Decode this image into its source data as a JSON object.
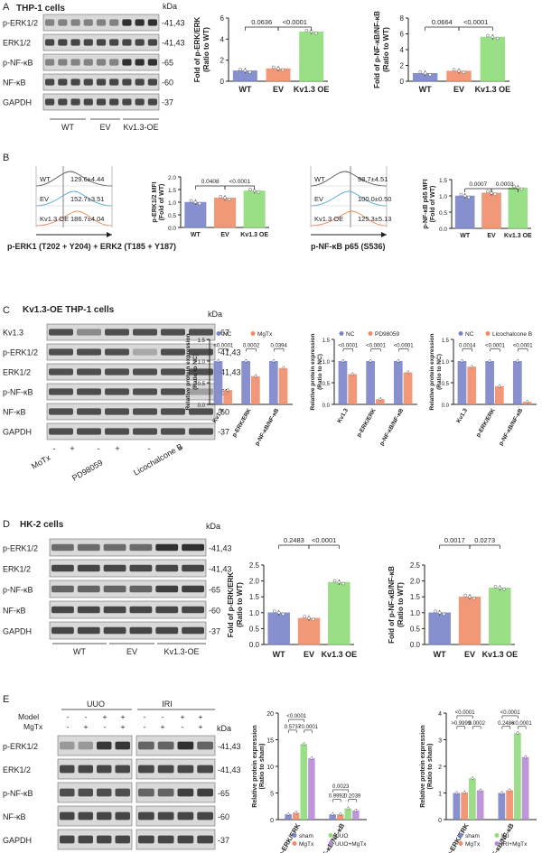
{
  "panelA": {
    "letter": "A",
    "title": "THP-1 cells",
    "kda_header": "kDa",
    "blot_rows": [
      {
        "label": "p-ERK1/2",
        "kda": "-41,43"
      },
      {
        "label": "ERK1/2",
        "kda": "-41,43"
      },
      {
        "label": "p-NF-κB",
        "kda": "-65"
      },
      {
        "label": "NF-κB",
        "kda": "-60"
      },
      {
        "label": "GAPDH",
        "kda": "-37"
      }
    ],
    "groups": [
      "WT",
      "EV",
      "Kv1.3-OE"
    ]
  },
  "panelB": {
    "letter": "B",
    "flow1": {
      "rows": [
        {
          "name": "WT",
          "value": "129.6±4.44"
        },
        {
          "name": "EV",
          "value": "152.7±3.51"
        },
        {
          "name": "Kv1.3 OE",
          "value": "186.7±4.04"
        }
      ],
      "xlabel": "p-ERK1 (T202 + Y204) + ERK2 (T185 + Y187)"
    },
    "flow2": {
      "rows": [
        {
          "name": "WT",
          "value": "98.7±4.51"
        },
        {
          "name": "EV",
          "value": "100.0±0.50"
        },
        {
          "name": "Kv1.3 OE",
          "value": "125.3±5.13"
        }
      ],
      "xlabel": "p-NF-κB p65 (S536)"
    }
  },
  "panelC": {
    "letter": "C",
    "title": "Kv1.3-OE THP-1 cells",
    "kda_header": "kDa",
    "blot_rows": [
      {
        "label": "Kv1.3",
        "kda": "-67"
      },
      {
        "label": "p-ERK1/2",
        "kda": "-41,43"
      },
      {
        "label": "ERK1/2",
        "kda": "-41,43"
      },
      {
        "label": "p-NF-κB",
        "kda": "-65"
      },
      {
        "label": "NF-κB",
        "kda": "-60"
      },
      {
        "label": "GAPDH",
        "kda": "-37"
      }
    ],
    "signs": [
      "-",
      "+",
      "-",
      "+",
      "-",
      "+"
    ],
    "treatments": [
      "MoTx",
      "PD98059",
      "Licochalcone B"
    ]
  },
  "panelD": {
    "letter": "D",
    "title": "HK-2 cells",
    "kda_header": "kDa",
    "blot_rows": [
      {
        "label": "p-ERK1/2",
        "kda": "-41,43"
      },
      {
        "label": "ERK1/2",
        "kda": "-41,43"
      },
      {
        "label": "p-NF-κB",
        "kda": "-65"
      },
      {
        "label": "NF-κB",
        "kda": "-60"
      },
      {
        "label": "GAPDH",
        "kda": "-37"
      }
    ],
    "groups": [
      "WT",
      "EV",
      "Kv1.3-OE"
    ]
  },
  "panelE": {
    "letter": "E",
    "model_header": "Model",
    "mgtx_header": "MgTx",
    "group_uuo": "UUO",
    "group_iri": "IRI",
    "model_signs": [
      "-",
      "-",
      "+",
      "+"
    ],
    "mgtx_signs": [
      "-",
      "+",
      "-",
      "+"
    ],
    "blot_rows": [
      {
        "label": "p-ERK1/2",
        "kda": "-41,43"
      },
      {
        "label": "ERK1/2",
        "kda": "-41,43"
      },
      {
        "label": "p-NF-κB",
        "kda": "-65"
      },
      {
        "label": "NF-κB",
        "kda": "-60"
      },
      {
        "label": "GAPDH",
        "kda": "-37"
      }
    ],
    "kda_header": "kDa"
  },
  "chart_data": [
    {
      "id": "A1",
      "type": "bar",
      "categories": [
        "WT",
        "EV",
        "Kv1.3 OE"
      ],
      "values": [
        1.0,
        1.2,
        4.7
      ],
      "colors": [
        "#7b84c9",
        "#ef8d6a",
        "#8fdc7a"
      ],
      "ylabel": "Fold of p-ERK/ERK\n(Ratio to WT)",
      "ylim": [
        0,
        6
      ],
      "yticks": [
        "0",
        "2",
        "4",
        "6"
      ],
      "yticks_values": [
        0,
        2,
        4,
        6
      ],
      "annotations": [
        {
          "text": "0.0636",
          "from": 0,
          "to": 1
        },
        {
          "text": "<0.0001",
          "from": 1,
          "to": 2
        }
      ]
    },
    {
      "id": "A2",
      "type": "bar",
      "categories": [
        "WT",
        "EV",
        "Kv1.3 OE"
      ],
      "values": [
        1.0,
        1.3,
        5.6
      ],
      "colors": [
        "#7b84c9",
        "#ef8d6a",
        "#8fdc7a"
      ],
      "ylabel": "Fold of p-NF-κB/NF-κB\n(Ratio to WT)",
      "ylim": [
        0,
        8
      ],
      "yticks": [
        "0",
        "2",
        "4",
        "6",
        "8"
      ],
      "yticks_values": [
        0,
        2,
        4,
        6,
        8
      ],
      "annotations": [
        {
          "text": "0.0664",
          "from": 0,
          "to": 1
        },
        {
          "text": "<0.0001",
          "from": 1,
          "to": 2
        }
      ]
    },
    {
      "id": "B1",
      "type": "bar",
      "categories": [
        "WT",
        "EV",
        "Kv1.3 OE"
      ],
      "values": [
        1.0,
        1.17,
        1.45
      ],
      "colors": [
        "#7b84c9",
        "#ef8d6a",
        "#8fdc7a"
      ],
      "ylabel": "p-ERK1/2 MFI\n(Fold of WT)",
      "ylim": [
        0,
        2.0
      ],
      "yticks": [
        "0.0",
        "0.5",
        "1.0",
        "1.5",
        "2.0"
      ],
      "yticks_values": [
        0,
        0.5,
        1.0,
        1.5,
        2.0
      ],
      "annotations": [
        {
          "text": "0.0408",
          "from": 0,
          "to": 1
        },
        {
          "text": "<0.0001",
          "from": 1,
          "to": 2
        }
      ]
    },
    {
      "id": "B2",
      "type": "bar",
      "categories": [
        "WT",
        "EV",
        "Kv1.3 OE"
      ],
      "values": [
        1.0,
        1.09,
        1.25
      ],
      "colors": [
        "#7b84c9",
        "#ef8d6a",
        "#8fdc7a"
      ],
      "ylabel": "p-NF-κB p65 MFI\n(Fold of WT)",
      "ylim": [
        0,
        1.5
      ],
      "yticks": [
        "0.0",
        "0.5",
        "1.0",
        "1.5"
      ],
      "yticks_values": [
        0,
        0.5,
        1.0,
        1.5
      ],
      "annotations": [
        {
          "text": "0.0007",
          "from": 0,
          "to": 1
        },
        {
          "text": "0.0003",
          "from": 1,
          "to": 2
        }
      ]
    },
    {
      "id": "C1",
      "type": "bar",
      "legend": [
        "NC",
        "MgTx"
      ],
      "categories": [
        "Kv1.3",
        "p-ERK/ERK",
        "p-NF-κB/NF-κB"
      ],
      "series": [
        {
          "name": "NC",
          "values": [
            1,
            1,
            1
          ]
        },
        {
          "name": "MgTx",
          "values": [
            0.33,
            0.65,
            0.84
          ]
        }
      ],
      "colors": [
        "#7b84c9",
        "#ef8d6a"
      ],
      "ylabel": "Relative protein expression\n(Ratio to NC)",
      "ylim": [
        0,
        1.5
      ],
      "yticks": [
        "0.0",
        "0.5",
        "1.0",
        "1.5"
      ],
      "yticks_values": [
        0,
        0.5,
        1.0,
        1.5
      ],
      "annotations": [
        "<0.0001",
        "0.0002",
        "0.0394"
      ]
    },
    {
      "id": "C2",
      "type": "bar",
      "legend": [
        "NC",
        "PD98059"
      ],
      "categories": [
        "Kv1.3",
        "p-ERK/ERK",
        "p-NF-κB/NF-κB"
      ],
      "series": [
        {
          "name": "NC",
          "values": [
            1,
            1,
            1
          ]
        },
        {
          "name": "PD98059",
          "values": [
            0.7,
            0.12,
            0.74
          ]
        }
      ],
      "colors": [
        "#7b84c9",
        "#ef8d6a"
      ],
      "ylabel": "Relative protein expression\n(Ratio to NC)",
      "ylim": [
        0,
        1.5
      ],
      "yticks": [
        "0.0",
        "0.5",
        "1.0",
        "1.5"
      ],
      "yticks_values": [
        0,
        0.5,
        1.0,
        1.5
      ],
      "annotations": [
        "<0.0001",
        "<0.0001",
        "<0.0001"
      ]
    },
    {
      "id": "C3",
      "type": "bar",
      "legend": [
        "NC",
        "Licochalcone B"
      ],
      "categories": [
        "Kv1.3",
        "p-ERK/ERK",
        "p-NF-κB/NF-κB"
      ],
      "series": [
        {
          "name": "NC",
          "values": [
            1,
            1,
            1
          ]
        },
        {
          "name": "Licochalcone B",
          "values": [
            0.87,
            0.42,
            0.06
          ]
        }
      ],
      "colors": [
        "#7b84c9",
        "#ef8d6a"
      ],
      "ylabel": "Relative protein expression\n(Ratio to NC)",
      "ylim": [
        0,
        1.5
      ],
      "yticks": [
        "0.0",
        "0.5",
        "1.0",
        "1.5"
      ],
      "yticks_values": [
        0,
        0.5,
        1.0,
        1.5
      ],
      "annotations": [
        "0.0014",
        "<0.0001",
        "<0.0001"
      ]
    },
    {
      "id": "D1",
      "type": "bar",
      "categories": [
        "WT",
        "EV",
        "Kv1.3 OE"
      ],
      "values": [
        1.0,
        0.83,
        1.96
      ],
      "colors": [
        "#7b84c9",
        "#ef8d6a",
        "#8fdc7a"
      ],
      "ylabel": "Fold of p-ERK/ERK\n(Ratio to WT)",
      "ylim": [
        0,
        2.5
      ],
      "yticks": [
        "0.0",
        "0.5",
        "1.0",
        "1.5",
        "2.0",
        "2.5"
      ],
      "yticks_values": [
        0,
        0.5,
        1.0,
        1.5,
        2.0,
        2.5
      ],
      "annotations": [
        {
          "text": "0.2483",
          "from": 0,
          "to": 1
        },
        {
          "text": "<0.0001",
          "from": 1,
          "to": 2
        }
      ]
    },
    {
      "id": "D2",
      "type": "bar",
      "categories": [
        "WT",
        "EV",
        "Kv1.3 OE"
      ],
      "values": [
        1.0,
        1.5,
        1.78
      ],
      "colors": [
        "#7b84c9",
        "#ef8d6a",
        "#8fdc7a"
      ],
      "ylabel": "Fold of p-NF-κB/NF-κB\n(Ratio to WT)",
      "ylim": [
        0,
        2.5
      ],
      "yticks": [
        "0.0",
        "0.5",
        "1.0",
        "1.5",
        "2.0",
        "2.5"
      ],
      "yticks_values": [
        0,
        0.5,
        1.0,
        1.5,
        2.0,
        2.5
      ],
      "annotations": [
        {
          "text": "0.0017",
          "from": 0,
          "to": 1
        },
        {
          "text": "0.0273",
          "from": 1,
          "to": 2
        }
      ]
    },
    {
      "id": "E1",
      "type": "bar",
      "legend": [
        "sham",
        "UUO",
        "MgTx",
        "UUO+MgTx"
      ],
      "categories": [
        "p-ERK/ERK",
        "p-NF-κB/NF-κB"
      ],
      "series": [
        {
          "name": "sham",
          "values": [
            1,
            1
          ]
        },
        {
          "name": "MgTx",
          "values": [
            1.3,
            1.0
          ]
        },
        {
          "name": "UUO",
          "values": [
            14.2,
            2.1
          ]
        },
        {
          "name": "UUO+MgTx",
          "values": [
            11.5,
            1.7
          ]
        }
      ],
      "colors": [
        "#7b84c9",
        "#ef8d6a",
        "#8fdc7a",
        "#b98bd6"
      ],
      "ylabel": "Relative protein expression\n(Ratio to sham)",
      "ylim": [
        0,
        20
      ],
      "yticks": [
        "0",
        "5",
        "10",
        "15",
        "20"
      ],
      "yticks_values": [
        0,
        5,
        10,
        15,
        20
      ],
      "annotations": [
        "<0.0001",
        "0.5737",
        "<0.0001",
        "0.0023",
        "0.9992",
        "0.2039"
      ]
    },
    {
      "id": "E2",
      "type": "bar",
      "legend": [
        "sham",
        "IRI",
        "MgTx",
        "IRI+MgTx"
      ],
      "categories": [
        "p-ERK/ERK",
        "p-NF-κB/NF-κB"
      ],
      "series": [
        {
          "name": "sham",
          "values": [
            1,
            1
          ]
        },
        {
          "name": "MgTx",
          "values": [
            1.02,
            1.1
          ]
        },
        {
          "name": "IRI",
          "values": [
            1.55,
            3.25
          ]
        },
        {
          "name": "IRI+MgTx",
          "values": [
            1.1,
            2.35
          ]
        }
      ],
      "colors": [
        "#7b84c9",
        "#ef8d6a",
        "#8fdc7a",
        "#b98bd6"
      ],
      "ylabel": "Relative protein expression\n(Ratio to sham)",
      "ylim": [
        0,
        4
      ],
      "yticks": [
        "0",
        "1",
        "2",
        "3",
        "4"
      ],
      "yticks_values": [
        0,
        1,
        2,
        3,
        4
      ],
      "annotations": [
        "<0.0001",
        ">0.9999",
        "0.0002",
        "<0.0001",
        "0.2486",
        "<0.0001"
      ]
    }
  ]
}
